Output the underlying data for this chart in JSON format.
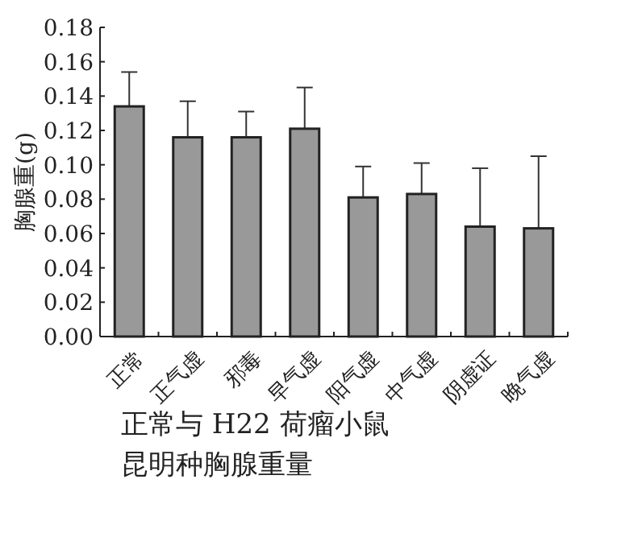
{
  "chart_data": {
    "type": "bar",
    "xlabel": "正常与 H22 荷瘤小鼠昆明种胸腺重量",
    "ylabel": "胸腺重(g)",
    "categories": [
      "正常",
      "正气虚",
      "邪毒",
      "早气虚",
      "阳气虚",
      "中气虚",
      "阴虚证",
      "晚气虚"
    ],
    "values": [
      0.134,
      0.116,
      0.116,
      0.121,
      0.081,
      0.083,
      0.064,
      0.063
    ],
    "errors": [
      [
        0.134,
        0.154
      ],
      [
        0.116,
        0.137
      ],
      [
        0.116,
        0.131
      ],
      [
        0.121,
        0.145
      ],
      [
        0.081,
        0.099
      ],
      [
        0.083,
        0.101
      ],
      [
        0.064,
        0.098
      ],
      [
        0.063,
        0.105
      ]
    ],
    "color": "#999999",
    "ylim": [
      0,
      0.18
    ],
    "yticks": [
      {
        "value": 0,
        "label": "0.00"
      },
      0.02,
      0.04,
      0.06,
      0.08,
      {
        "value": 0.1,
        "label": "0.10"
      },
      0.12,
      0.14,
      0.16,
      0.18
    ],
    "grid": false
  }
}
